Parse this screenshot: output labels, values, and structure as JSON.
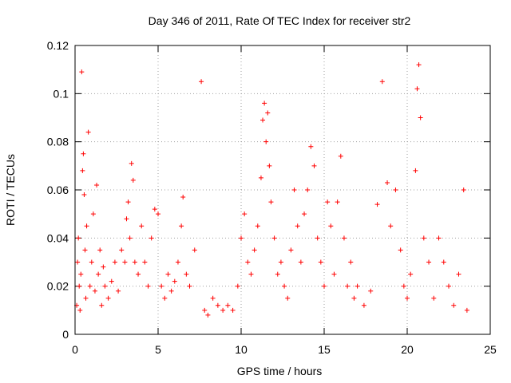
{
  "chart_data": {
    "type": "scatter",
    "title": "Day 346 of 2011, Rate Of TEC Index for receiver str2",
    "xlabel": "GPS time / hours",
    "ylabel": "ROTI / TECUs",
    "xlim": [
      0,
      25
    ],
    "ylim": [
      0,
      0.12
    ],
    "xticks": [
      0,
      5,
      10,
      15,
      20,
      25
    ],
    "yticks": [
      0,
      0.02,
      0.04,
      0.06,
      0.08,
      0.1,
      0.12
    ],
    "xtick_labels": [
      "0",
      "5",
      "10",
      "15",
      "20",
      "25"
    ],
    "ytick_labels": [
      "0",
      "0.02",
      "0.04",
      "0.06",
      "0.08",
      "0.1",
      "0.12"
    ],
    "grid": true,
    "marker": "+",
    "color": "#ff0000",
    "series": [
      {
        "points": [
          [
            0.1,
            0.012
          ],
          [
            0.15,
            0.03
          ],
          [
            0.2,
            0.04
          ],
          [
            0.25,
            0.02
          ],
          [
            0.3,
            0.01
          ],
          [
            0.35,
            0.025
          ],
          [
            0.4,
            0.109
          ],
          [
            0.45,
            0.068
          ],
          [
            0.5,
            0.075
          ],
          [
            0.55,
            0.058
          ],
          [
            0.6,
            0.035
          ],
          [
            0.65,
            0.015
          ],
          [
            0.7,
            0.045
          ],
          [
            0.8,
            0.084
          ],
          [
            0.9,
            0.02
          ],
          [
            1.0,
            0.03
          ],
          [
            1.1,
            0.05
          ],
          [
            1.2,
            0.018
          ],
          [
            1.3,
            0.062
          ],
          [
            1.4,
            0.025
          ],
          [
            1.5,
            0.035
          ],
          [
            1.6,
            0.012
          ],
          [
            1.7,
            0.028
          ],
          [
            1.8,
            0.02
          ],
          [
            2.0,
            0.015
          ],
          [
            2.2,
            0.022
          ],
          [
            2.4,
            0.03
          ],
          [
            2.6,
            0.018
          ],
          [
            2.8,
            0.035
          ],
          [
            3.0,
            0.03
          ],
          [
            3.1,
            0.048
          ],
          [
            3.2,
            0.055
          ],
          [
            3.3,
            0.04
          ],
          [
            3.4,
            0.071
          ],
          [
            3.5,
            0.064
          ],
          [
            3.6,
            0.03
          ],
          [
            3.8,
            0.025
          ],
          [
            4.0,
            0.045
          ],
          [
            4.2,
            0.03
          ],
          [
            4.4,
            0.02
          ],
          [
            4.6,
            0.04
          ],
          [
            4.8,
            0.052
          ],
          [
            5.0,
            0.05
          ],
          [
            5.2,
            0.02
          ],
          [
            5.4,
            0.015
          ],
          [
            5.6,
            0.025
          ],
          [
            5.8,
            0.018
          ],
          [
            6.0,
            0.022
          ],
          [
            6.2,
            0.03
          ],
          [
            6.4,
            0.045
          ],
          [
            6.5,
            0.057
          ],
          [
            6.7,
            0.025
          ],
          [
            6.9,
            0.02
          ],
          [
            7.2,
            0.035
          ],
          [
            7.6,
            0.105
          ],
          [
            7.8,
            0.01
          ],
          [
            8.0,
            0.008
          ],
          [
            8.3,
            0.015
          ],
          [
            8.6,
            0.012
          ],
          [
            8.9,
            0.01
          ],
          [
            9.2,
            0.012
          ],
          [
            9.5,
            0.01
          ],
          [
            9.8,
            0.02
          ],
          [
            10.0,
            0.04
          ],
          [
            10.2,
            0.05
          ],
          [
            10.4,
            0.03
          ],
          [
            10.6,
            0.025
          ],
          [
            10.8,
            0.035
          ],
          [
            11.0,
            0.045
          ],
          [
            11.2,
            0.065
          ],
          [
            11.3,
            0.089
          ],
          [
            11.4,
            0.096
          ],
          [
            11.5,
            0.08
          ],
          [
            11.6,
            0.092
          ],
          [
            11.7,
            0.07
          ],
          [
            11.8,
            0.055
          ],
          [
            12.0,
            0.04
          ],
          [
            12.2,
            0.025
          ],
          [
            12.4,
            0.03
          ],
          [
            12.6,
            0.02
          ],
          [
            12.8,
            0.015
          ],
          [
            13.0,
            0.035
          ],
          [
            13.2,
            0.06
          ],
          [
            13.4,
            0.045
          ],
          [
            13.6,
            0.03
          ],
          [
            13.8,
            0.05
          ],
          [
            14.0,
            0.06
          ],
          [
            14.2,
            0.078
          ],
          [
            14.4,
            0.07
          ],
          [
            14.6,
            0.04
          ],
          [
            14.8,
            0.03
          ],
          [
            15.0,
            0.02
          ],
          [
            15.2,
            0.055
          ],
          [
            15.4,
            0.045
          ],
          [
            15.6,
            0.025
          ],
          [
            15.8,
            0.055
          ],
          [
            16.0,
            0.074
          ],
          [
            16.2,
            0.04
          ],
          [
            16.4,
            0.02
          ],
          [
            16.6,
            0.03
          ],
          [
            16.8,
            0.015
          ],
          [
            17.0,
            0.02
          ],
          [
            17.4,
            0.012
          ],
          [
            17.8,
            0.018
          ],
          [
            18.2,
            0.054
          ],
          [
            18.5,
            0.105
          ],
          [
            18.8,
            0.063
          ],
          [
            19.0,
            0.045
          ],
          [
            19.3,
            0.06
          ],
          [
            19.6,
            0.035
          ],
          [
            19.8,
            0.02
          ],
          [
            20.0,
            0.015
          ],
          [
            20.2,
            0.025
          ],
          [
            20.5,
            0.068
          ],
          [
            20.6,
            0.102
          ],
          [
            20.7,
            0.112
          ],
          [
            20.8,
            0.09
          ],
          [
            21.0,
            0.04
          ],
          [
            21.3,
            0.03
          ],
          [
            21.6,
            0.015
          ],
          [
            21.9,
            0.04
          ],
          [
            22.2,
            0.03
          ],
          [
            22.5,
            0.02
          ],
          [
            22.8,
            0.012
          ],
          [
            23.1,
            0.025
          ],
          [
            23.4,
            0.06
          ],
          [
            23.6,
            0.01
          ]
        ]
      }
    ]
  }
}
